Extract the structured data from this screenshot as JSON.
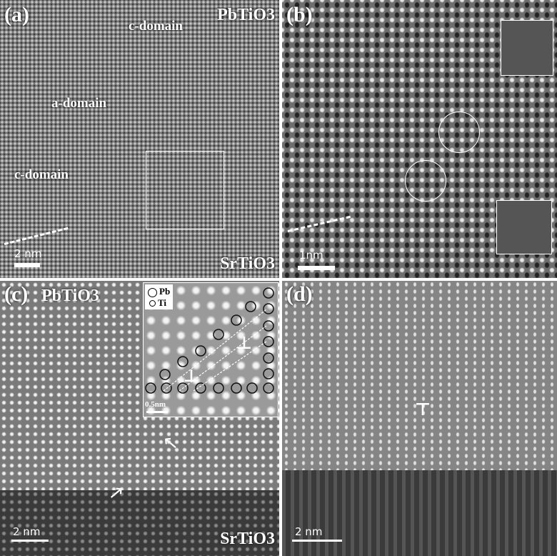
{
  "panels": {
    "a": {
      "label": "(a)",
      "top_material": "PbTiO3",
      "bottom_material": "SrTiO3",
      "domains": [
        "c-domain",
        "a-domain",
        "c-domain"
      ],
      "scale": "2 nm"
    },
    "b": {
      "label": "(b)",
      "scale": "1nm"
    },
    "c": {
      "label": "(c)",
      "top_material": "PbTiO3",
      "bottom_material": "SrTiO3",
      "scale": "2 nm",
      "inset": {
        "legend": [
          "Pb",
          "Ti"
        ],
        "scale": "0.5nm",
        "dislocation_symbol": "⊥"
      }
    },
    "d": {
      "label": "(d)",
      "scale": "2 nm",
      "dislocation_symbol": "⊤"
    }
  }
}
